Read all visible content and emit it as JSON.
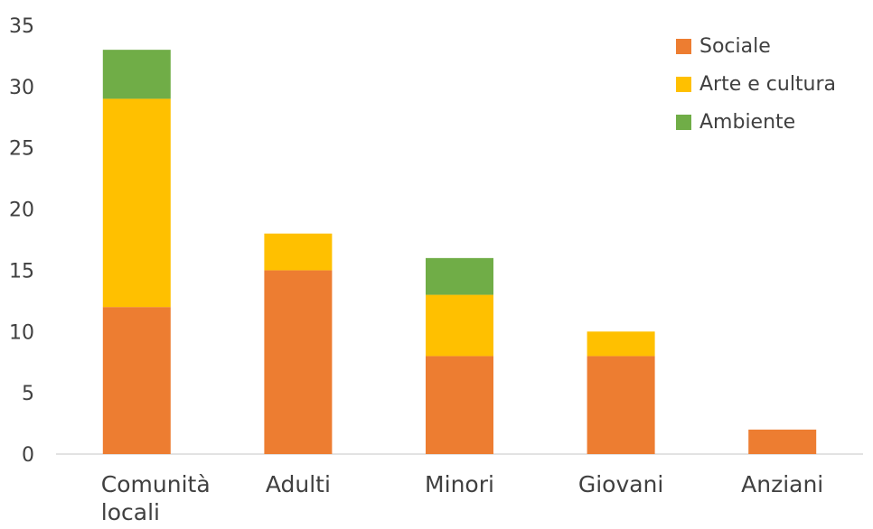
{
  "chart_data": {
    "type": "bar",
    "stacked": true,
    "categories": [
      "Comunità\nlocali",
      "Adulti",
      "Minori",
      "Giovani",
      "Anziani"
    ],
    "series": [
      {
        "name": "Sociale",
        "color": "#ED7D31",
        "values": [
          12,
          15,
          8,
          8,
          2
        ]
      },
      {
        "name": "Arte e cultura",
        "color": "#FFC000",
        "values": [
          17,
          3,
          5,
          2,
          0
        ]
      },
      {
        "name": "Ambiente",
        "color": "#70AD47",
        "values": [
          4,
          0,
          3,
          0,
          0
        ]
      }
    ],
    "ylim": [
      0,
      35
    ],
    "yticks": [
      "0",
      "5",
      "10",
      "15",
      "20",
      "25",
      "30",
      "35"
    ],
    "grid": false,
    "legend_position": "top-right",
    "title": "",
    "xlabel": "",
    "ylabel": ""
  }
}
